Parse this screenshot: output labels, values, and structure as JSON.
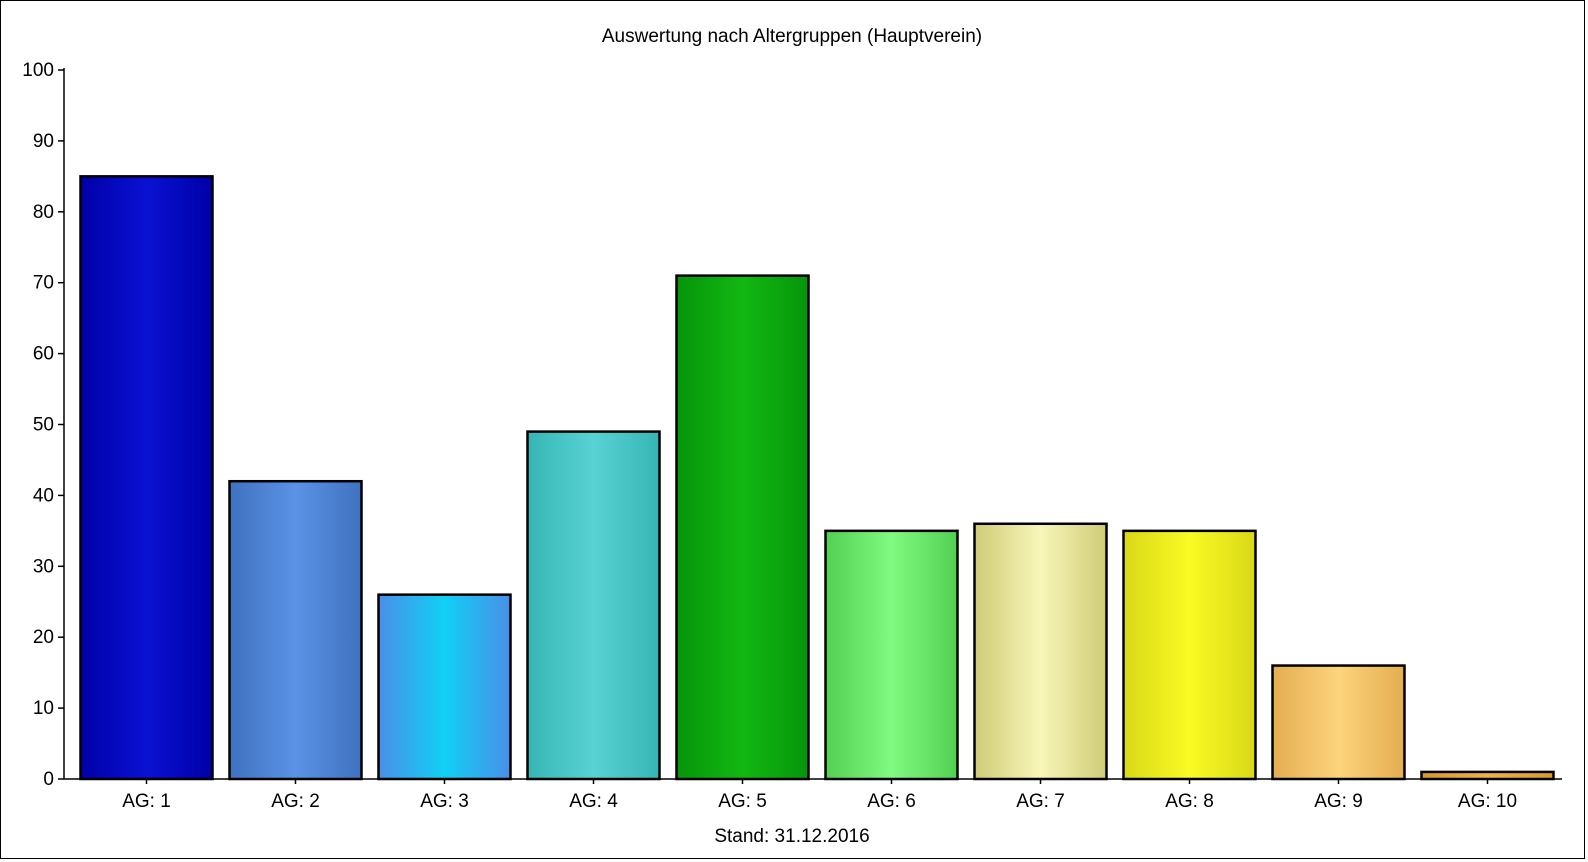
{
  "chart_data": {
    "type": "bar",
    "title": "Auswertung nach Altergruppen (Hauptverein)",
    "xlabel": "Stand: 31.12.2016",
    "ylabel": "",
    "ylim": [
      0,
      100
    ],
    "yticks": [
      "0",
      "10",
      "20",
      "30",
      "40",
      "50",
      "60",
      "70",
      "80",
      "90",
      "100"
    ],
    "categories": [
      "AG: 1",
      "AG: 2",
      "AG: 3",
      "AG: 4",
      "AG: 5",
      "AG: 6",
      "AG: 7",
      "AG: 8",
      "AG: 9",
      "AG: 10"
    ],
    "values": [
      85,
      42,
      26,
      49,
      71,
      35,
      36,
      35,
      16,
      1
    ],
    "grid": false,
    "legend": "none",
    "colors": [
      {
        "edge": "#0000a8",
        "mid": "#0a12d2"
      },
      {
        "edge": "#3f72bf",
        "mid": "#5b92e6"
      },
      {
        "edge": "#4a8fe8",
        "mid": "#10d0f4"
      },
      {
        "edge": "#37b5b5",
        "mid": "#58d2d2"
      },
      {
        "edge": "#06950a",
        "mid": "#12b812"
      },
      {
        "edge": "#52d052",
        "mid": "#80fa80"
      },
      {
        "edge": "#cfcc78",
        "mid": "#f8f6b8"
      },
      {
        "edge": "#d8d818",
        "mid": "#fafa24"
      },
      {
        "edge": "#e4ad50",
        "mid": "#fcd47c"
      },
      {
        "edge": "#d89a2c",
        "mid": "#f2b048"
      }
    ]
  }
}
